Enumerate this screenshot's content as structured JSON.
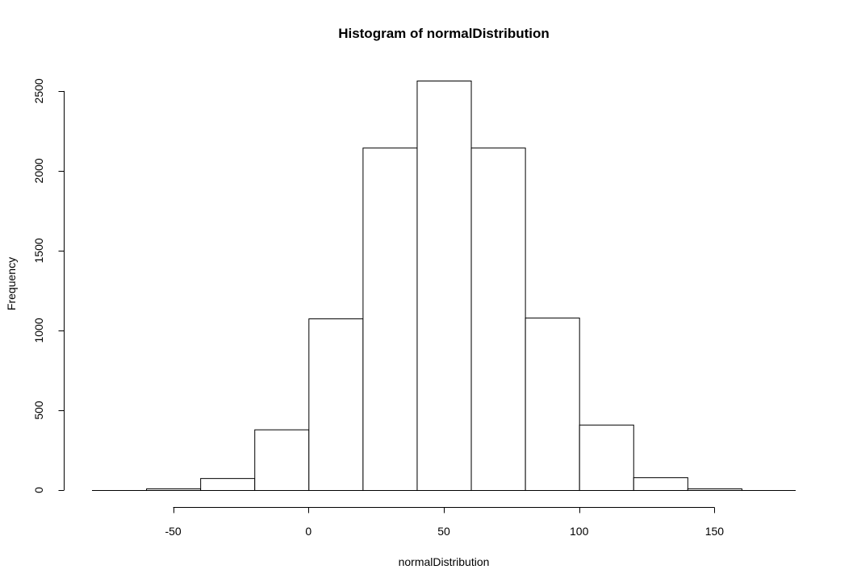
{
  "chart_data": {
    "type": "bar",
    "title": "Histogram of normalDistribution",
    "xlabel": "normalDistribution",
    "ylabel": "Frequency",
    "xlim": [
      -80,
      180
    ],
    "ylim": [
      0,
      2570
    ],
    "x_ticks": [
      -50,
      0,
      50,
      100,
      150
    ],
    "y_ticks": [
      0,
      500,
      1000,
      1500,
      2000,
      2500
    ],
    "grid": false,
    "bins": [
      {
        "x0": -60,
        "x1": -40,
        "count": 10
      },
      {
        "x0": -40,
        "x1": -20,
        "count": 75
      },
      {
        "x0": -20,
        "x1": 0,
        "count": 380
      },
      {
        "x0": 0,
        "x1": 20,
        "count": 1075
      },
      {
        "x0": 20,
        "x1": 40,
        "count": 2145
      },
      {
        "x0": 40,
        "x1": 60,
        "count": 2565
      },
      {
        "x0": 60,
        "x1": 80,
        "count": 2145
      },
      {
        "x0": 80,
        "x1": 100,
        "count": 1080
      },
      {
        "x0": 100,
        "x1": 120,
        "count": 410
      },
      {
        "x0": 120,
        "x1": 140,
        "count": 80
      },
      {
        "x0": 140,
        "x1": 160,
        "count": 10
      }
    ]
  }
}
